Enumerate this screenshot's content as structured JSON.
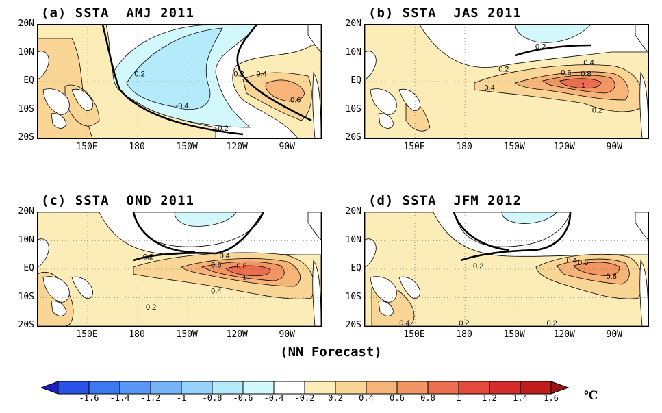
{
  "panels": [
    {
      "title": "(a) SSTA  AMJ 2011",
      "contour_labels": [
        "0.2",
        "-0.4",
        "-0.2",
        "0.2",
        "0.4",
        "0.6"
      ]
    },
    {
      "title": "(b) SSTA  JAS 2011",
      "contour_labels": [
        "0.2",
        "0.2",
        "0.4",
        "0.6",
        "0.8",
        "1",
        "0.4",
        "0.2"
      ]
    },
    {
      "title": "(c) SSTA  OND 2011",
      "contour_labels": [
        "0.2",
        "0.4",
        "0.6",
        "0.8",
        "1",
        "0.4",
        "0.2"
      ]
    },
    {
      "title": "(d) SSTA  JFM 2012",
      "contour_labels": [
        "0.2",
        "0.4",
        "0.6",
        "0.8",
        "0.4",
        "0.2",
        "0.2"
      ]
    }
  ],
  "lat_labels": [
    "20N",
    "10N",
    "EQ",
    "10S",
    "20S"
  ],
  "lon_labels": [
    "150E",
    "180",
    "150W",
    "120W",
    "90W"
  ],
  "caption": "(NN Forecast)",
  "colorbar": {
    "ticks": [
      "-1.6",
      "-1.4",
      "-1.2",
      "-1",
      "-0.8",
      "-0.6",
      "-0.4",
      "-0.2",
      "0.2",
      "0.4",
      "0.6",
      "0.8",
      "1",
      "1.2",
      "1.4",
      "1.6"
    ],
    "colors": [
      "#1e1ec8",
      "#2a52e6",
      "#3c78f0",
      "#5a96f5",
      "#78b4fa",
      "#96d2fa",
      "#b4eafa",
      "#d2f8fc",
      "#ffffff",
      "#fcecb8",
      "#f9d696",
      "#f6b478",
      "#f29664",
      "#ec6e50",
      "#e44a3c",
      "#d62c2c",
      "#c01c1c",
      "#9c1414"
    ],
    "unit": "℃"
  },
  "accent": {
    "land": "#ffffff",
    "coast": "#000000"
  }
}
